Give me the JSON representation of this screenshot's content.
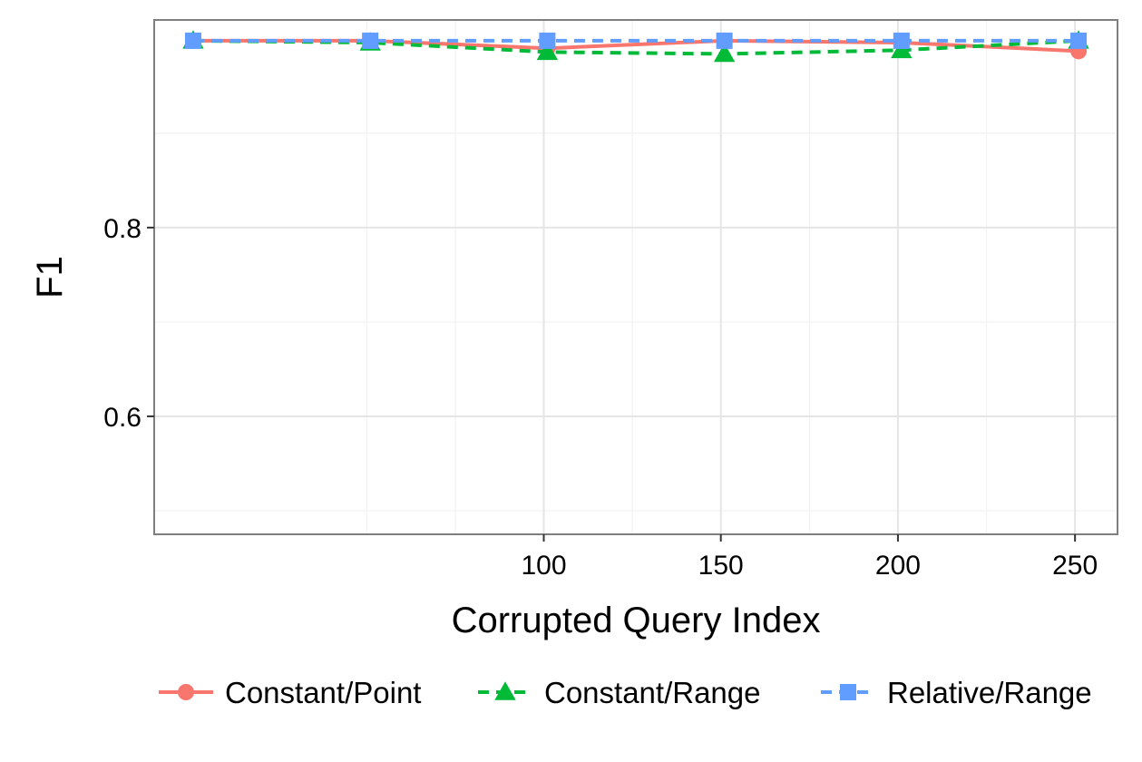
{
  "chart_data": {
    "type": "line",
    "title": "",
    "xlabel": "Corrupted Query Index",
    "ylabel": "F1",
    "xlim": [
      -10,
      262
    ],
    "ylim": [
      0.475,
      1.02
    ],
    "x_ticks": [
      100,
      150,
      200,
      250
    ],
    "x_tick_labels": [
      "100",
      "150",
      "200",
      "250"
    ],
    "x_minor_gridlines": [
      50,
      75,
      125,
      175,
      225
    ],
    "y_ticks": [
      0.6,
      0.8
    ],
    "y_tick_labels": [
      "0.6",
      "0.8"
    ],
    "y_minor_gridlines": [
      0.5,
      0.7,
      0.9
    ],
    "grid": true,
    "legend_position": "bottom",
    "x": [
      1,
      51,
      101,
      151,
      201,
      251
    ],
    "series": [
      {
        "name": "Constant/Point",
        "values": [
          0.998,
          0.998,
          0.99,
          0.998,
          0.996,
          0.987
        ],
        "color": "#F8766D",
        "marker": "circle",
        "line": "solid"
      },
      {
        "name": "Constant/Range",
        "values": [
          0.998,
          0.996,
          0.986,
          0.984,
          0.988,
          0.998
        ],
        "color": "#00BA38",
        "marker": "triangle",
        "line": "dashed"
      },
      {
        "name": "Relative/Range",
        "values": [
          0.998,
          0.998,
          0.998,
          0.998,
          0.998,
          0.998
        ],
        "color": "#619CFF",
        "marker": "square",
        "line": "dashed"
      }
    ],
    "panel_background": "#ffffff",
    "panel_border_color": "#7f7f7f",
    "major_grid_color": "#e5e5e5",
    "minor_grid_color": "#f2f2f2"
  }
}
